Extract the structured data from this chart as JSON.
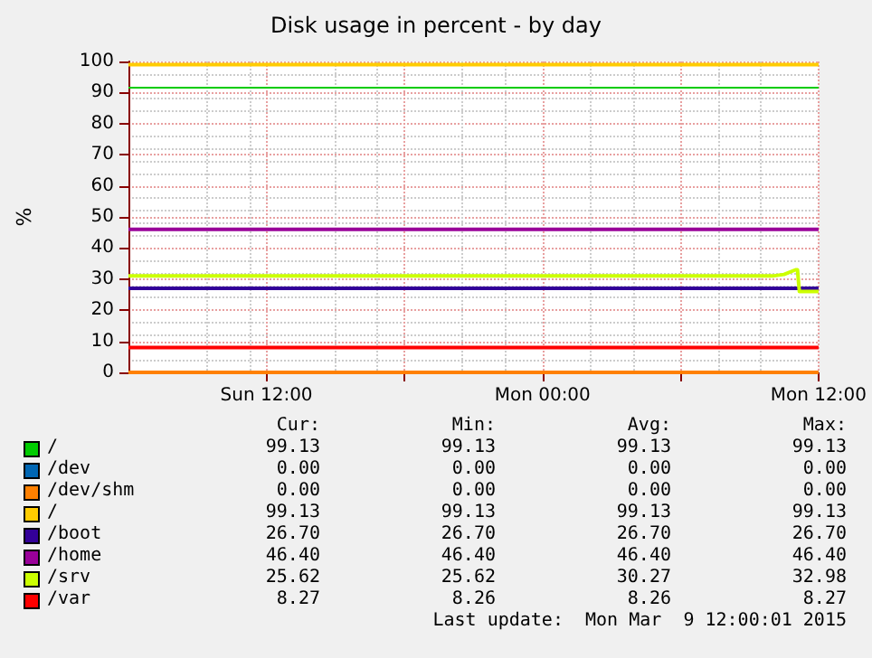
{
  "chart_data": [
    {
      "type": "line",
      "title": "Disk usage in percent - by day",
      "ylabel": "%",
      "x": [
        "2015-03-08T06:00",
        "2015-03-09T12:00"
      ],
      "series": [
        {
          "color": "#ff8000",
          "values": [
            0,
            0
          ]
        },
        {
          "color": "#ffcc00",
          "values": [
            99,
            99
          ]
        },
        {
          "color": "#330099",
          "values": [
            27,
            27
          ]
        },
        {
          "color": "#990099",
          "values": [
            46,
            46
          ]
        },
        {
          "color": "#ccff00",
          "x": [
            "2015-03-08T06:00",
            "2015-03-09T10:00",
            "2015-03-09T10:30",
            "2015-03-09T11:00",
            "2015-03-09T11:05",
            "2015-03-09T11:10",
            "2015-03-09T12:00"
          ],
          "values": [
            31,
            31,
            31.5,
            33,
            33,
            26,
            26
          ]
        },
        {
          "color": "#ff0000",
          "values": [
            8,
            8
          ]
        }
      ],
      "ref_lines": [
        {
          "axis": "y",
          "value": 92,
          "color": "#00cc00"
        }
      ],
      "xlim": [
        "2015-03-08T06:00",
        "2015-03-09T12:00"
      ],
      "xticks": [
        {
          "value": "2015-03-08T12:00",
          "label": "Sun 12:00"
        },
        {
          "value": "2015-03-08T18:00",
          "label": null
        },
        {
          "value": "2015-03-09T00:00",
          "label": "Mon 00:00"
        },
        {
          "value": "2015-03-09T06:00",
          "label": null
        },
        {
          "value": "2015-03-09T12:00",
          "label": "Mon 12:00"
        }
      ],
      "ylim": [
        0,
        100
      ],
      "yticks": [
        0,
        10,
        20,
        30,
        40,
        50,
        60,
        70,
        80,
        90,
        100
      ],
      "grid": true,
      "marker": "none"
    },
    {
      "type": "other",
      "categories": [
        "/",
        "/dev",
        "/dev/shm",
        "/",
        "/boot",
        "/home",
        "/srv",
        "/var"
      ],
      "colors": [
        "#00cc00",
        "#0066b3",
        "#ff8000",
        "#ffcc00",
        "#330099",
        "#990099",
        "#ccff00",
        "#ff0000"
      ],
      "series": [
        {
          "name": "Cur:",
          "values": [
            99.13,
            0,
            0,
            99.13,
            26.7,
            46.4,
            25.62,
            8.27
          ],
          "value_labels": [
            "99.13",
            "0.00",
            "0.00",
            "99.13",
            "26.70",
            "46.40",
            "25.62",
            "8.27"
          ]
        },
        {
          "name": "Min:",
          "values": [
            99.13,
            0,
            0,
            99.13,
            26.7,
            46.4,
            25.62,
            8.26
          ],
          "value_labels": [
            "99.13",
            "0.00",
            "0.00",
            "99.13",
            "26.70",
            "46.40",
            "25.62",
            "8.26"
          ]
        },
        {
          "name": "Avg:",
          "values": [
            99.13,
            0,
            0,
            99.13,
            26.7,
            46.4,
            30.27,
            8.26
          ],
          "value_labels": [
            "99.13",
            "0.00",
            "0.00",
            "99.13",
            "26.70",
            "46.40",
            "30.27",
            "8.26"
          ]
        },
        {
          "name": "Max:",
          "values": [
            99.13,
            0,
            0,
            99.13,
            26.7,
            46.4,
            32.98,
            8.27
          ],
          "value_labels": [
            "99.13",
            "0.00",
            "0.00",
            "99.13",
            "26.70",
            "46.40",
            "32.98",
            "8.27"
          ]
        }
      ],
      "annotations": [
        "Last update:  Mon Mar  9 12:00:01 2015"
      ]
    }
  ]
}
